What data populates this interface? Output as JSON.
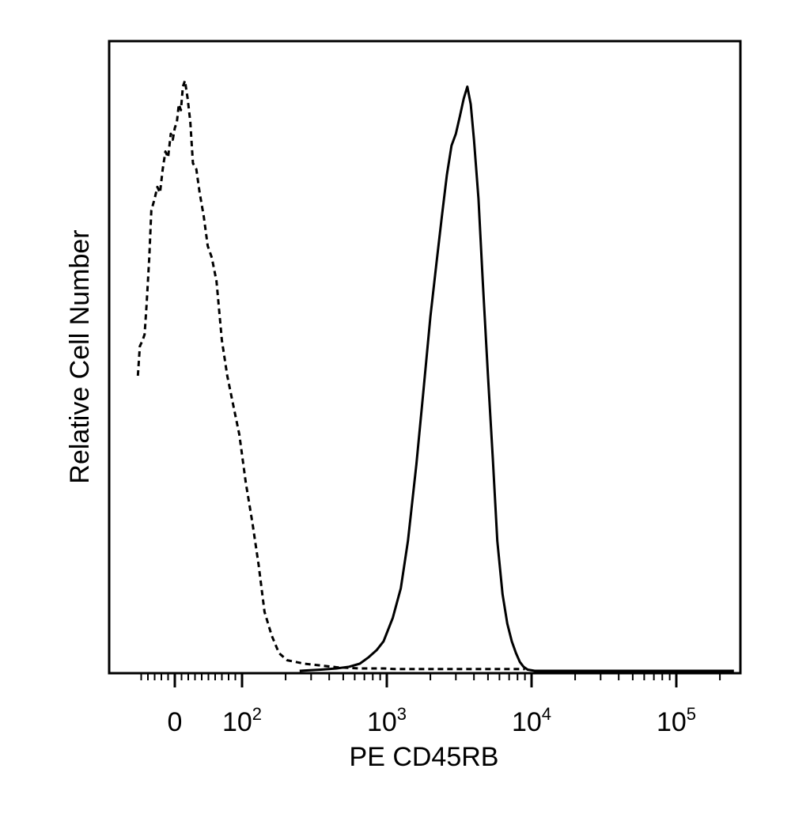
{
  "chart_data": {
    "type": "line",
    "title": "",
    "xlabel": "PE CD45RB",
    "ylabel": "Relative Cell Number",
    "x_scale": "biexponential",
    "xlim": [
      -60,
      250000
    ],
    "ylim": [
      0,
      100
    ],
    "grid": false,
    "legend": "none",
    "x_ticks": [
      {
        "value": 0,
        "base": "0",
        "exp": ""
      },
      {
        "value": 100,
        "base": "10",
        "exp": "2"
      },
      {
        "value": 1000,
        "base": "10",
        "exp": "3"
      },
      {
        "value": 10000,
        "base": "10",
        "exp": "4"
      },
      {
        "value": 100000,
        "base": "10",
        "exp": "5"
      }
    ],
    "series": [
      {
        "style": "dashed",
        "color": "#000000",
        "x": [
          -55,
          -52,
          -48,
          -45,
          -42,
          -38,
          -35,
          -30,
          -26,
          -22,
          -18,
          -14,
          -10,
          -6,
          -3,
          0,
          3,
          6,
          9,
          12,
          15,
          19,
          23,
          27,
          32,
          37,
          43,
          49,
          55,
          62,
          70,
          78,
          87,
          96,
          106,
          118,
          130,
          143,
          160,
          180,
          205,
          235,
          270,
          320,
          380,
          450,
          540,
          650,
          780,
          950,
          1150,
          1500,
          2000,
          3000,
          5000,
          9000
        ],
        "y": [
          50,
          55,
          56,
          57,
          62,
          70,
          78,
          80,
          82,
          81,
          85,
          88,
          87,
          91,
          90,
          92,
          93,
          96,
          95,
          99,
          100,
          97,
          93,
          86,
          85,
          81,
          77,
          72,
          70,
          66,
          56,
          50,
          45,
          40,
          32,
          25,
          18,
          10,
          6,
          3,
          1.8,
          1.5,
          1.2,
          1.0,
          0.8,
          0.6,
          0.5,
          0.4,
          0.4,
          0.4,
          0.3,
          0.3,
          0.3,
          0.3,
          0.3,
          0.3
        ]
      },
      {
        "style": "solid",
        "color": "#000000",
        "x": [
          250,
          350,
          450,
          550,
          650,
          750,
          850,
          950,
          1100,
          1250,
          1400,
          1600,
          1800,
          2000,
          2200,
          2400,
          2600,
          2800,
          3000,
          3200,
          3400,
          3600,
          3800,
          4000,
          4300,
          4600,
          5000,
          5400,
          5800,
          6300,
          6800,
          7300,
          7800,
          8300,
          8800,
          9400,
          10500,
          15000,
          40000,
          120000,
          250000
        ],
        "y": [
          0,
          0.2,
          0.4,
          0.7,
          1.2,
          2.3,
          3.5,
          5,
          9,
          14,
          22,
          35,
          48,
          60,
          69,
          77,
          84,
          89,
          91,
          94,
          97,
          99,
          96,
          90,
          80,
          66,
          50,
          36,
          22,
          13,
          8,
          5,
          3,
          1.5,
          0.7,
          0.2,
          0,
          0,
          0,
          0,
          0
        ]
      }
    ]
  }
}
